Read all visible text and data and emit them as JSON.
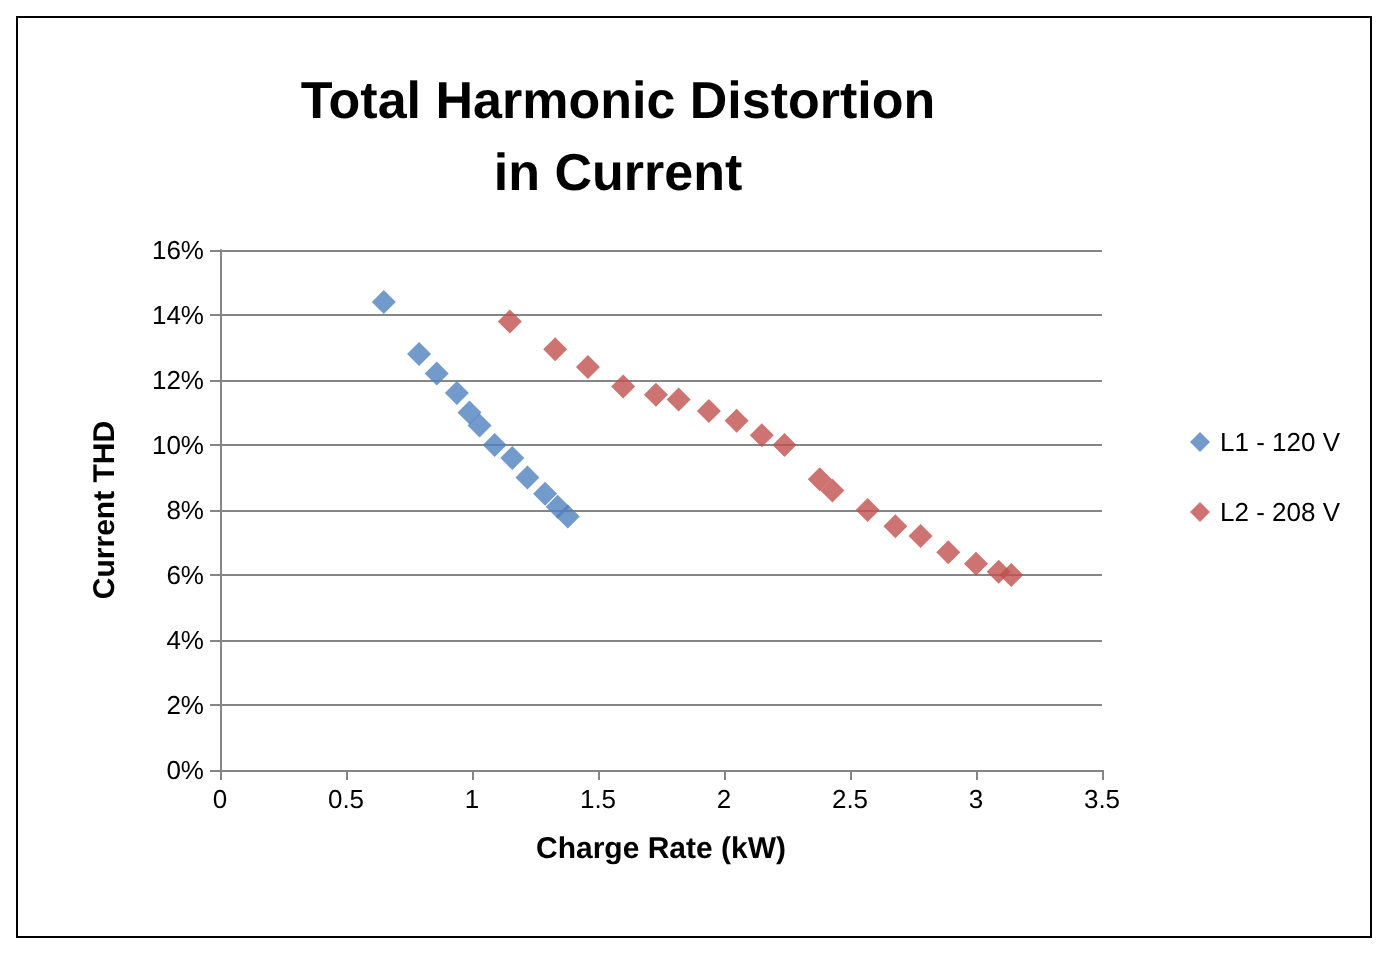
{
  "chart_data": {
    "type": "scatter",
    "title": "Total Harmonic Distortion\nin Current",
    "xlabel": "Charge Rate (kW)",
    "ylabel": "Current THD",
    "xlim": [
      0,
      3.5
    ],
    "xticks": [
      0,
      0.5,
      1,
      1.5,
      2,
      2.5,
      3,
      3.5
    ],
    "ylim": [
      0,
      16
    ],
    "yticks": [
      {
        "value": 0,
        "label": "0%"
      },
      {
        "value": 2,
        "label": "2%"
      },
      {
        "value": 4,
        "label": "4%"
      },
      {
        "value": 6,
        "label": "6%"
      },
      {
        "value": 8,
        "label": "8%"
      },
      {
        "value": 10,
        "label": "10%"
      },
      {
        "value": 12,
        "label": "12%"
      },
      {
        "value": 14,
        "label": "14%"
      },
      {
        "value": 16,
        "label": "16%"
      }
    ],
    "grid": "y",
    "legend": "right",
    "marker": "diamond",
    "series": [
      {
        "name": "L1 - 120 V",
        "color": "#4f81bd",
        "x": [
          0.65,
          0.79,
          0.86,
          0.94,
          0.99,
          1.03,
          1.09,
          1.16,
          1.22,
          1.29,
          1.34,
          1.38
        ],
        "values": [
          14.4,
          12.8,
          12.2,
          11.6,
          11.0,
          10.6,
          10.0,
          9.6,
          9.0,
          8.5,
          8.1,
          7.8
        ]
      },
      {
        "name": "L2 - 208 V",
        "color": "#c0504d",
        "x": [
          1.15,
          1.33,
          1.46,
          1.6,
          1.73,
          1.82,
          1.94,
          2.05,
          2.15,
          2.24,
          2.38,
          2.43,
          2.57,
          2.68,
          2.78,
          2.89,
          3.0,
          3.09,
          3.14
        ],
        "values": [
          13.8,
          12.95,
          12.4,
          11.8,
          11.55,
          11.4,
          11.05,
          10.75,
          10.3,
          10.0,
          8.95,
          8.6,
          8.0,
          7.5,
          7.2,
          6.7,
          6.35,
          6.1,
          6.0
        ]
      }
    ]
  }
}
